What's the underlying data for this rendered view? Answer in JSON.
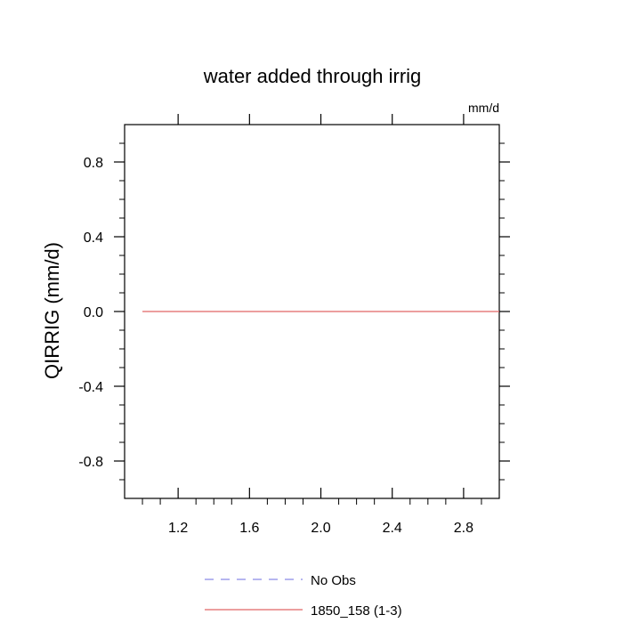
{
  "chart_data": {
    "type": "line",
    "title": "water added through irrig",
    "units_label": "mm/d",
    "xlabel": "",
    "ylabel": "QIRRIG  (mm/d)",
    "xlim": [
      0.9,
      3.0
    ],
    "ylim": [
      -1.0,
      1.0
    ],
    "x_major_ticks": [
      1.2,
      1.6,
      2.0,
      2.4,
      2.8
    ],
    "x_tick_labels": [
      "1.2",
      "1.6",
      "2.0",
      "2.4",
      "2.8"
    ],
    "y_major_ticks": [
      -0.8,
      -0.4,
      0.0,
      0.4,
      0.8
    ],
    "y_tick_labels": [
      "-0.8",
      "-0.4",
      "0.0",
      "0.4",
      "0.8"
    ],
    "grid": false,
    "legend_position": "bottom",
    "series": [
      {
        "name": "No Obs",
        "color": "#8a8ae6",
        "dash": "dashed",
        "x": [],
        "y": []
      },
      {
        "name": "1850_158 (1-3)",
        "color": "#e06666",
        "dash": "solid",
        "x": [
          1.0,
          3.0
        ],
        "y": [
          0.0,
          0.0
        ]
      }
    ]
  }
}
